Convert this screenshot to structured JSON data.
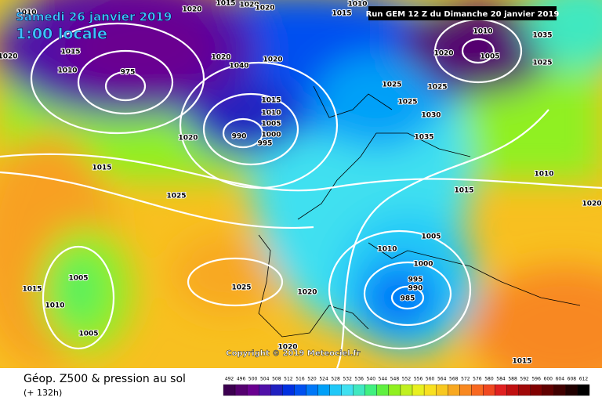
{
  "header": {
    "date": "Samedi 26 janvier 2019",
    "time": "1:00 locale",
    "run": "Run GEM 12 Z du Dimanche 20 janvier 2019"
  },
  "map": {
    "copyright": "Copyright © 2019 Meteociel.fr",
    "isobar_labels": [
      "1010",
      "1020",
      "1015",
      "1020",
      "1020",
      "1015",
      "1010",
      "1020",
      "1015",
      "1010",
      "975",
      "1020",
      "1040",
      "1020",
      "1025",
      "1025",
      "1025",
      "1030",
      "1035",
      "1010",
      "1005",
      "1020",
      "1035",
      "1025",
      "1015",
      "1010",
      "1005",
      "1000",
      "995",
      "990",
      "1020",
      "1015",
      "1025",
      "1015",
      "1010",
      "1020",
      "1005",
      "1010",
      "1000",
      "995",
      "990",
      "985",
      "1005",
      "1010",
      "1005",
      "1015",
      "1025",
      "1020",
      "1020",
      "1015"
    ]
  },
  "footer": {
    "title": "Géop. Z500 & pression au sol",
    "lead": "(+ 132h)"
  },
  "legend": {
    "values": [
      492,
      496,
      500,
      504,
      508,
      512,
      516,
      520,
      524,
      528,
      532,
      536,
      540,
      544,
      548,
      552,
      556,
      560,
      564,
      568,
      572,
      576,
      580,
      584,
      588,
      592,
      596,
      600,
      604,
      608,
      612
    ],
    "colors": [
      "#3c0050",
      "#550070",
      "#6a0090",
      "#5010a8",
      "#2020c0",
      "#0030e0",
      "#0050f0",
      "#0078f8",
      "#00a0f8",
      "#20c8f8",
      "#40e0f0",
      "#40e8c0",
      "#40f080",
      "#60f040",
      "#90f020",
      "#c0f020",
      "#e8f020",
      "#f8e020",
      "#f8c820",
      "#f8a820",
      "#f88820",
      "#f86820",
      "#f04820",
      "#e02020",
      "#c01010",
      "#a00808",
      "#800000",
      "#600000",
      "#400000",
      "#200000",
      "#000000"
    ]
  }
}
